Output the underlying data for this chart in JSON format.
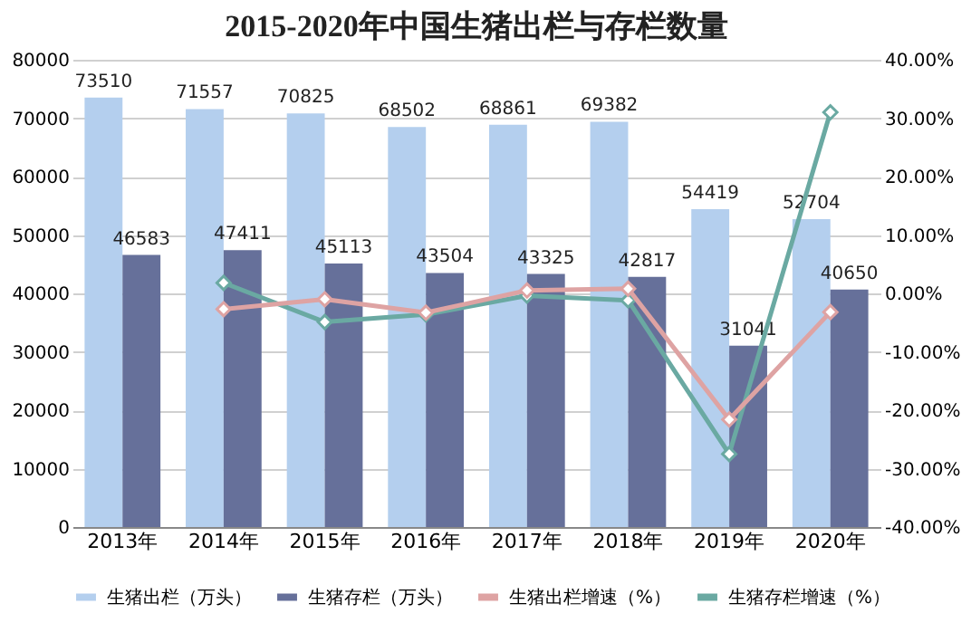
{
  "chart_data": {
    "type": "bar",
    "title": "2015-2020年中国生猪出栏与存栏数量",
    "categories": [
      "2013年",
      "2014年",
      "2015年",
      "2016年",
      "2017年",
      "2018年",
      "2019年",
      "2020年"
    ],
    "series": [
      {
        "name": "生猪出栏（万头）",
        "color": "#b4cfee",
        "values": [
          73510,
          71557,
          70825,
          68502,
          68861,
          69382,
          54419,
          52704
        ],
        "value_labels": [
          "73510",
          "71557",
          "70825",
          "68502",
          "68861",
          "69382",
          "54419",
          "52704"
        ]
      },
      {
        "name": "生猪存栏（万头）",
        "color": "#66709a",
        "values": [
          46583,
          47411,
          45113,
          43504,
          43325,
          42817,
          31041,
          40650
        ],
        "value_labels": [
          "46583",
          "47411",
          "45113",
          "43504",
          "43325",
          "42817",
          "31041",
          "40650"
        ]
      },
      {
        "name": "生猪出栏增速（%）",
        "type": "line",
        "axis": "y2",
        "color": "#dea3a3",
        "values": [
          null,
          -2.7,
          -1.0,
          -3.3,
          0.5,
          0.8,
          -21.6,
          -3.2
        ]
      },
      {
        "name": "生猪存栏增速（%）",
        "type": "line",
        "axis": "y2",
        "color": "#6aa9a2",
        "values": [
          null,
          1.8,
          -4.9,
          -3.6,
          -0.4,
          -1.2,
          -27.5,
          31.0
        ]
      }
    ],
    "ylim": [
      0,
      80000
    ],
    "yticks": [
      0,
      10000,
      20000,
      30000,
      40000,
      50000,
      60000,
      70000,
      80000
    ],
    "y2lim": [
      -40,
      40
    ],
    "y2ticks": [
      {
        "value": -40,
        "label": "-40.00%"
      },
      {
        "value": -30,
        "label": "-30.00%"
      },
      {
        "value": -20,
        "label": "-20.00%"
      },
      {
        "value": -10,
        "label": "-10.00%"
      },
      {
        "value": 0,
        "label": "0.00%"
      },
      {
        "value": 10,
        "label": "10.00%"
      },
      {
        "value": 20,
        "label": "20.00%"
      },
      {
        "value": 30,
        "label": "30.00%"
      },
      {
        "value": 40,
        "label": "40.00%"
      }
    ],
    "grid": "y",
    "legend": "bottom",
    "marker": "diamond",
    "line_style": "solid"
  }
}
